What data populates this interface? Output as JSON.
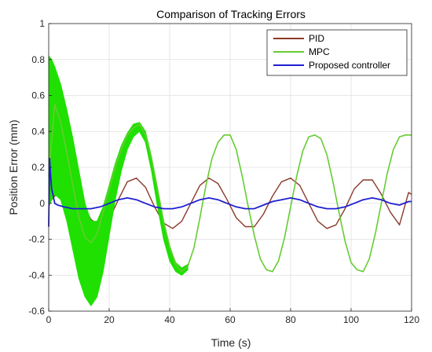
{
  "chart_data": {
    "type": "line",
    "title": "Comparison of Tracking Errors",
    "xlabel": "Time (s)",
    "ylabel": "Position Error (mm)",
    "xlim": [
      0,
      120
    ],
    "ylim": [
      -0.6,
      1
    ],
    "x_ticks": [
      "0",
      "20",
      "40",
      "60",
      "80",
      "100",
      "120"
    ],
    "y_ticks": [
      "-0.6",
      "-0.4",
      "-0.2",
      "0",
      "0.2",
      "0.4",
      "0.6",
      "0.8",
      "1"
    ],
    "grid": true,
    "legend_position": "top-right",
    "series": [
      {
        "name": "PID",
        "color": "#8B3A2A",
        "x": [
          0,
          2,
          4,
          8,
          11,
          14,
          17,
          20,
          23,
          26,
          29,
          32,
          35,
          38,
          41,
          44,
          47,
          50,
          53,
          56,
          59,
          62,
          65,
          68,
          71,
          74,
          77,
          80,
          83,
          86,
          89,
          92,
          95,
          98,
          101,
          104,
          107,
          110,
          113,
          116,
          119,
          120
        ],
        "y": [
          0.0,
          0.04,
          0.08,
          0.09,
          0.0,
          -0.09,
          -0.13,
          -0.09,
          0.02,
          0.12,
          0.14,
          0.09,
          -0.02,
          -0.11,
          -0.14,
          -0.1,
          0.0,
          0.1,
          0.14,
          0.11,
          0.02,
          -0.08,
          -0.13,
          -0.13,
          -0.06,
          0.04,
          0.12,
          0.14,
          0.1,
          0.0,
          -0.1,
          -0.14,
          -0.12,
          -0.03,
          0.08,
          0.13,
          0.13,
          0.05,
          -0.05,
          -0.12,
          0.06,
          0.05
        ]
      },
      {
        "name": "MPC",
        "color": "#66CC33",
        "x": [
          0,
          2,
          4,
          6,
          8,
          10,
          12,
          14,
          16,
          18,
          20,
          22,
          24,
          26,
          28,
          30,
          32,
          34,
          36,
          38,
          40,
          42,
          44,
          46,
          48,
          50,
          52,
          54,
          56,
          58,
          60,
          62,
          64,
          66,
          68,
          70,
          72,
          74,
          76,
          78,
          80,
          82,
          84,
          86,
          88,
          90,
          92,
          94,
          96,
          98,
          100,
          102,
          104,
          106,
          108,
          110,
          112,
          114,
          116,
          118,
          120
        ],
        "y": [
          0.15,
          0.55,
          0.45,
          0.28,
          0.1,
          -0.08,
          -0.19,
          -0.22,
          -0.17,
          -0.05,
          0.08,
          0.2,
          0.3,
          0.38,
          0.42,
          0.44,
          0.38,
          0.25,
          0.08,
          -0.1,
          -0.24,
          -0.34,
          -0.38,
          -0.35,
          -0.25,
          -0.08,
          0.1,
          0.25,
          0.34,
          0.38,
          0.38,
          0.3,
          0.15,
          -0.02,
          -0.18,
          -0.31,
          -0.37,
          -0.38,
          -0.32,
          -0.19,
          -0.02,
          0.15,
          0.29,
          0.37,
          0.38,
          0.36,
          0.27,
          0.12,
          -0.05,
          -0.21,
          -0.33,
          -0.37,
          -0.38,
          -0.31,
          -0.17,
          0.0,
          0.17,
          0.3,
          0.37,
          0.38,
          0.38
        ],
        "oscillation_band": {
          "x": [
            0,
            1,
            2,
            4,
            6,
            8,
            10,
            12,
            14,
            16,
            18,
            20,
            22,
            24,
            26,
            28,
            30,
            32,
            34,
            36,
            38,
            40,
            42,
            44,
            46
          ],
          "upper": [
            0.82,
            0.8,
            0.76,
            0.66,
            0.52,
            0.36,
            0.18,
            0.0,
            -0.1,
            -0.1,
            -0.02,
            0.1,
            0.22,
            0.32,
            0.39,
            0.44,
            0.45,
            0.4,
            0.26,
            0.08,
            -0.1,
            -0.24,
            -0.33,
            -0.36,
            -0.34
          ],
          "lower": [
            -0.02,
            0.02,
            0.05,
            0.02,
            -0.1,
            -0.26,
            -0.42,
            -0.52,
            -0.57,
            -0.52,
            -0.38,
            -0.18,
            0.02,
            0.18,
            0.3,
            0.37,
            0.4,
            0.34,
            0.18,
            -0.02,
            -0.2,
            -0.32,
            -0.38,
            -0.4,
            -0.37
          ]
        }
      },
      {
        "name": "Proposed controller",
        "color": "#1E1ED2",
        "x": [
          0,
          0.3,
          0.6,
          1,
          1.5,
          2,
          3,
          5,
          8,
          11,
          14,
          17,
          20,
          23,
          26,
          29,
          32,
          35,
          38,
          41,
          44,
          47,
          50,
          53,
          56,
          59,
          62,
          65,
          68,
          71,
          74,
          77,
          80,
          83,
          86,
          89,
          92,
          95,
          98,
          101,
          104,
          107,
          110,
          113,
          116,
          119,
          120
        ],
        "y": [
          -0.13,
          0.25,
          0.16,
          0.08,
          0.04,
          0.0,
          -0.01,
          -0.02,
          -0.03,
          -0.03,
          -0.03,
          -0.02,
          0.0,
          0.02,
          0.03,
          0.02,
          0.0,
          -0.02,
          -0.03,
          -0.03,
          -0.02,
          0.0,
          0.02,
          0.03,
          0.02,
          0.0,
          -0.02,
          -0.03,
          -0.03,
          -0.01,
          0.01,
          0.02,
          0.03,
          0.02,
          0.0,
          -0.02,
          -0.03,
          -0.03,
          -0.02,
          0.0,
          0.02,
          0.03,
          0.02,
          0.0,
          -0.01,
          0.01,
          0.01
        ]
      }
    ]
  }
}
